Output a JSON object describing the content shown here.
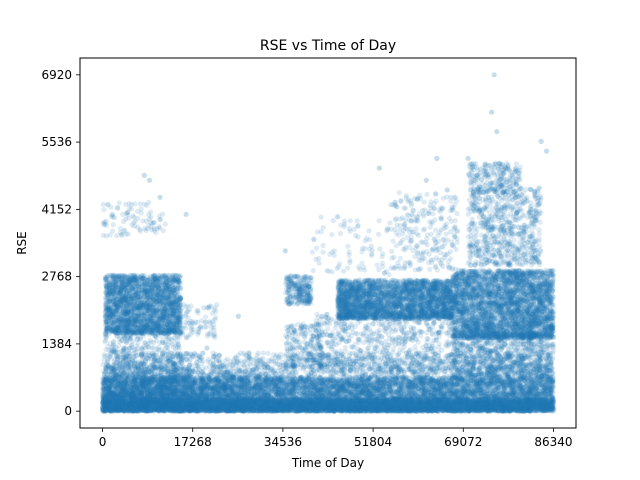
{
  "chart_data": {
    "type": "scatter",
    "title": "RSE vs Time of Day",
    "xlabel": "Time of Day",
    "ylabel": "RSE",
    "xlim": [
      -4317,
      90657
    ],
    "ylim": [
      -346,
      7266
    ],
    "xticks": [
      0,
      17268,
      34536,
      51804,
      69072,
      86340
    ],
    "yticks": [
      0,
      1384,
      2768,
      4152,
      5536,
      6920
    ],
    "xtick_labels": [
      "0",
      "17268",
      "34536",
      "51804",
      "69072",
      "86340"
    ],
    "ytick_labels": [
      "0",
      "1384",
      "2768",
      "4152",
      "5536",
      "6920"
    ],
    "grid": false,
    "marker_color": "#1f77b4",
    "marker_alpha": 0.15,
    "series": [
      {
        "clusters": [
          {
            "x": [
              0,
              86340
            ],
            "y": [
              0,
              700
            ],
            "n": 9000
          },
          {
            "x": [
              0,
              86340
            ],
            "y": [
              0,
              250
            ],
            "n": 5000
          },
          {
            "x": [
              0,
              17268
            ],
            "y": [
              0,
              900
            ],
            "n": 1000
          },
          {
            "x": [
              500,
              15000
            ],
            "y": [
              1600,
              2800
            ],
            "n": 2400
          },
          {
            "x": [
              500,
              15000
            ],
            "y": [
              900,
              1600
            ],
            "n": 300
          },
          {
            "x": [
              15000,
              22000
            ],
            "y": [
              1500,
              2200
            ],
            "n": 80
          },
          {
            "x": [
              35000,
              40000
            ],
            "y": [
              2200,
              2800
            ],
            "n": 250
          },
          {
            "x": [
              35000,
              42000
            ],
            "y": [
              900,
              1800
            ],
            "n": 200
          },
          {
            "x": [
              45000,
              67000
            ],
            "y": [
              1900,
              2700
            ],
            "n": 2800
          },
          {
            "x": [
              40000,
              67000
            ],
            "y": [
              800,
              2000
            ],
            "n": 700
          },
          {
            "x": [
              67000,
              86340
            ],
            "y": [
              1500,
              2900
            ],
            "n": 3400
          },
          {
            "x": [
              67000,
              86340
            ],
            "y": [
              700,
              1600
            ],
            "n": 900
          },
          {
            "x": [
              70000,
              84000
            ],
            "y": [
              3000,
              4600
            ],
            "n": 700
          },
          {
            "x": [
              70000,
              80000
            ],
            "y": [
              4500,
              5100
            ],
            "n": 220
          },
          {
            "x": [
              55000,
              68000
            ],
            "y": [
              2900,
              4500
            ],
            "n": 250
          },
          {
            "x": [
              40000,
              55000
            ],
            "y": [
              2800,
              4000
            ],
            "n": 80
          },
          {
            "x": [
              0,
              12000
            ],
            "y": [
              3600,
              4300
            ],
            "n": 90
          },
          {
            "x": [
              17268,
              34536
            ],
            "y": [
              300,
              1000
            ],
            "n": 200
          },
          {
            "x": [
              0,
              86340
            ],
            "y": [
              700,
              1200
            ],
            "n": 1200
          }
        ],
        "outliers": [
          {
            "x": 75000,
            "y": 6920
          },
          {
            "x": 74500,
            "y": 6150
          },
          {
            "x": 75500,
            "y": 5750
          },
          {
            "x": 84000,
            "y": 5550
          },
          {
            "x": 85000,
            "y": 5350
          },
          {
            "x": 70000,
            "y": 5200
          },
          {
            "x": 8000,
            "y": 4850
          },
          {
            "x": 9000,
            "y": 4750
          },
          {
            "x": 1000,
            "y": 4250
          },
          {
            "x": 11000,
            "y": 4400
          },
          {
            "x": 16000,
            "y": 4050
          },
          {
            "x": 26000,
            "y": 1950
          },
          {
            "x": 35000,
            "y": 3300
          },
          {
            "x": 53000,
            "y": 5000
          },
          {
            "x": 62000,
            "y": 4750
          },
          {
            "x": 64000,
            "y": 5200
          },
          {
            "x": 66000,
            "y": 4550
          },
          {
            "x": 56000,
            "y": 4300
          },
          {
            "x": 45000,
            "y": 4000
          },
          {
            "x": 20000,
            "y": 1300
          },
          {
            "x": 22000,
            "y": 900
          },
          {
            "x": 28000,
            "y": 1200
          },
          {
            "x": 30000,
            "y": 1050
          }
        ]
      }
    ]
  }
}
